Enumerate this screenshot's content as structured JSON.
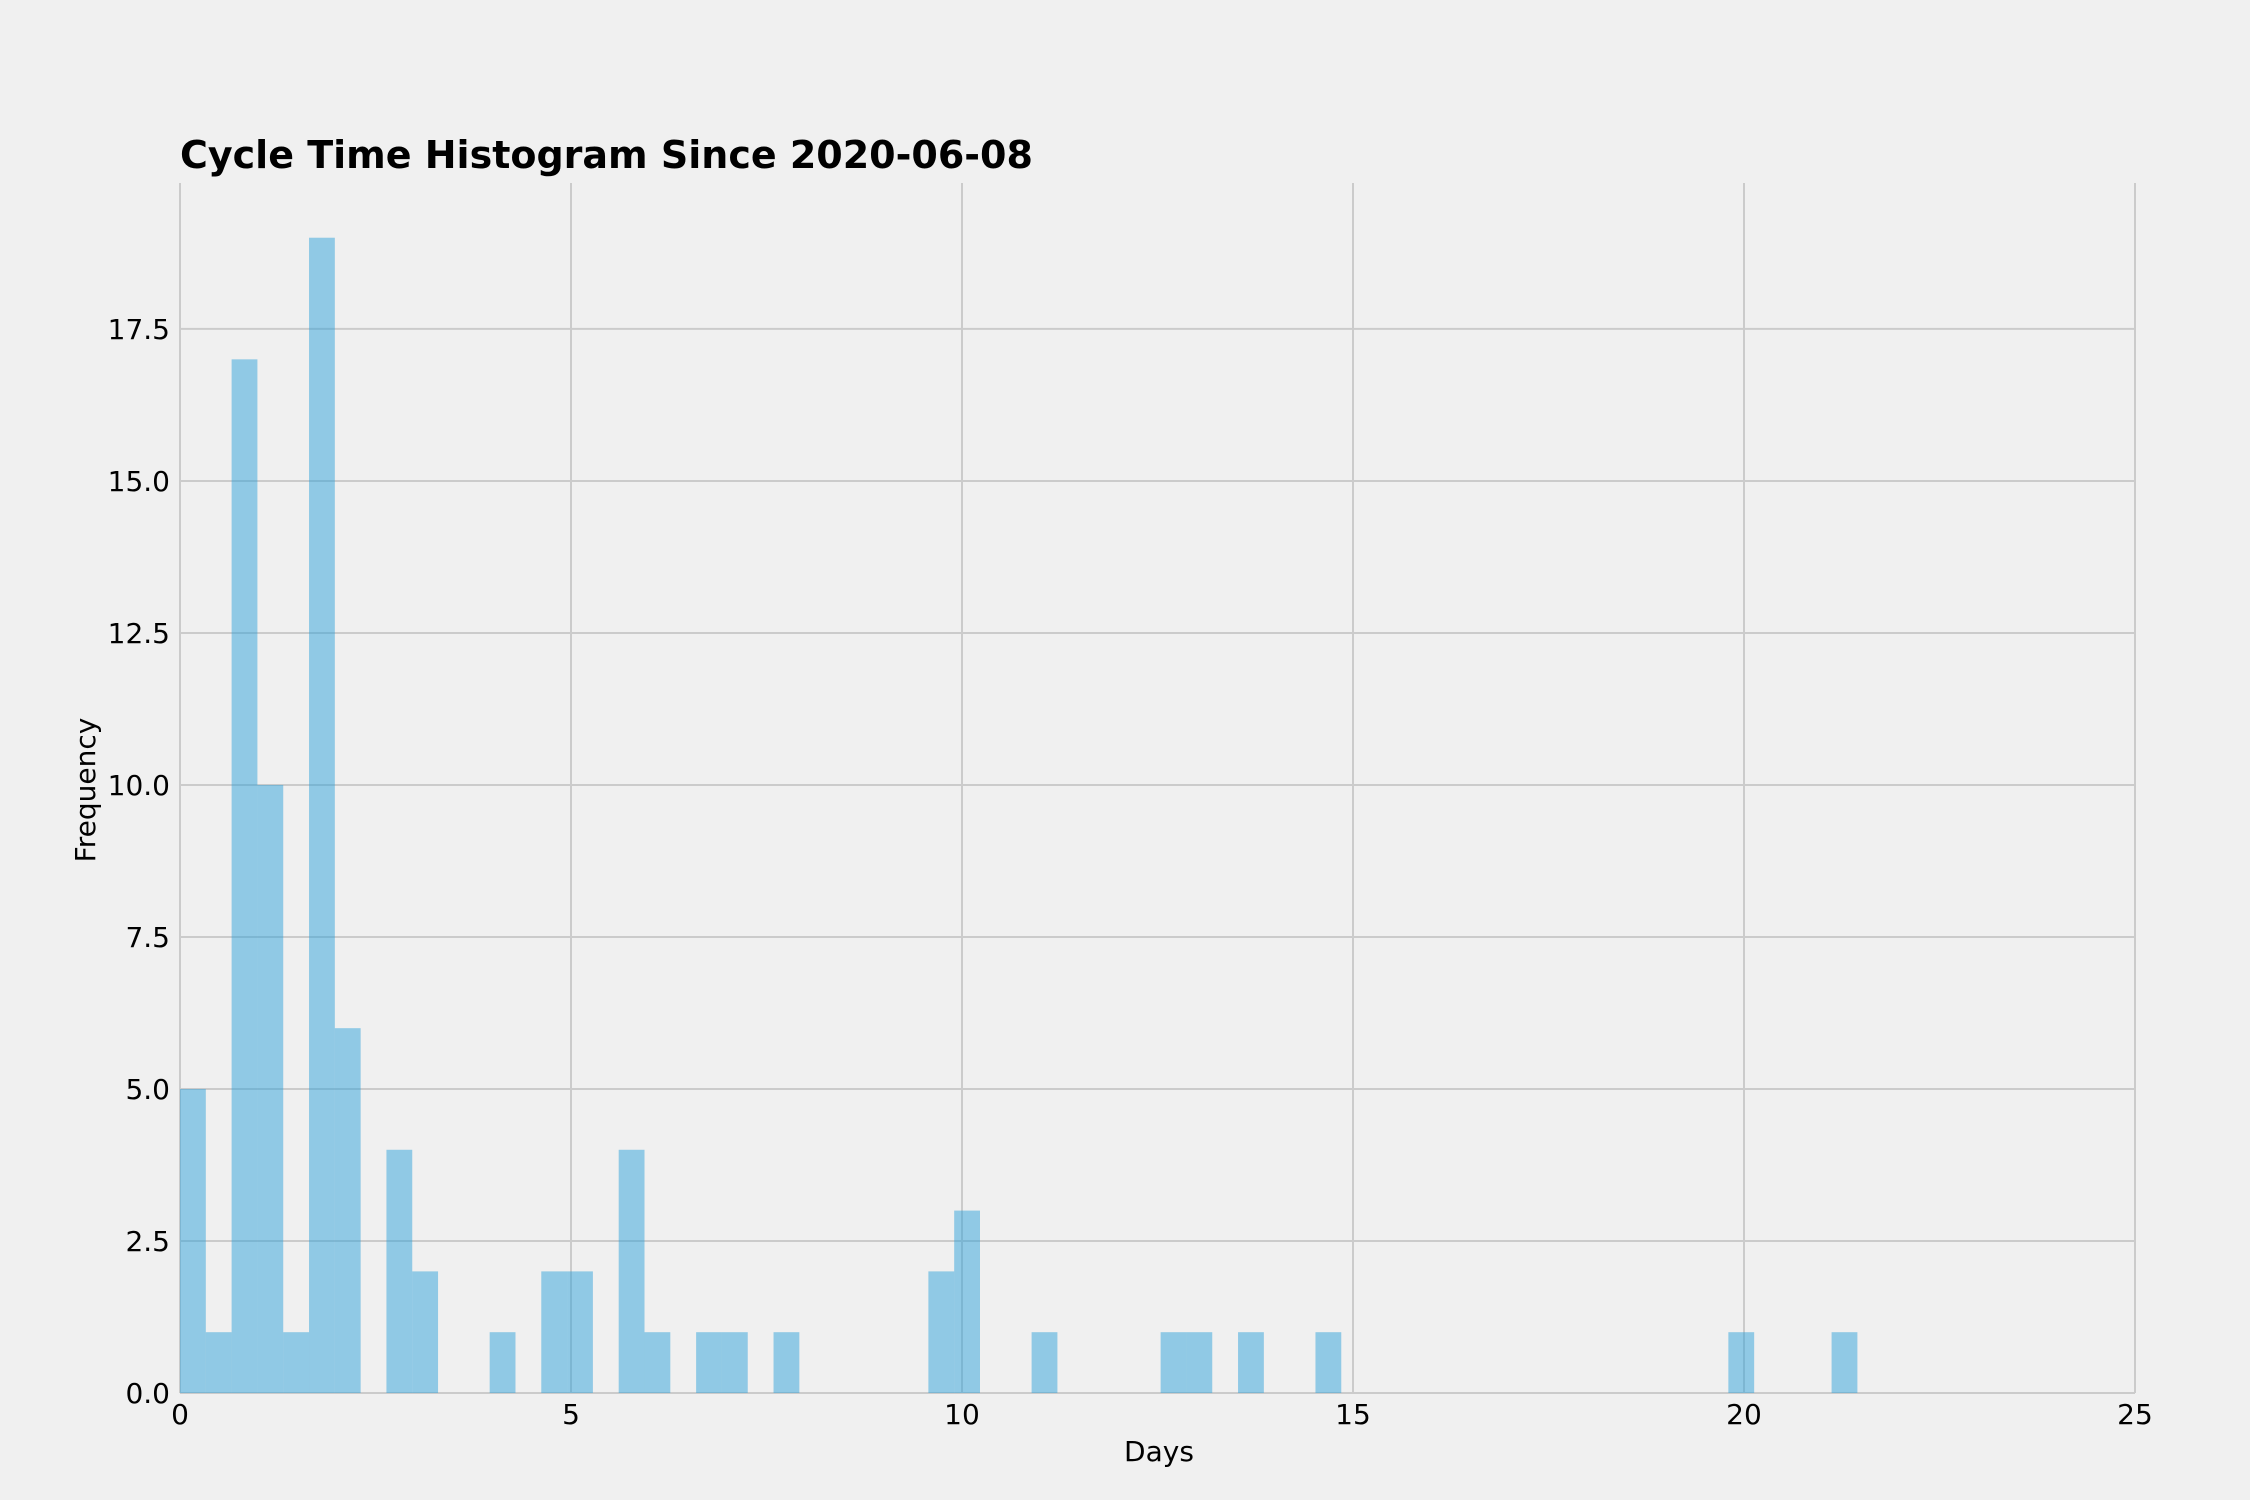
{
  "chart_data": {
    "type": "bar",
    "title": "Cycle Time Histogram Since 2020-06-08",
    "xlabel": "Days",
    "ylabel": "Frequency",
    "xlim": [
      0,
      25
    ],
    "ylim": [
      0,
      19.9
    ],
    "grid": true,
    "bar_color": "#30a2da",
    "background": "#f0f0f0",
    "x_ticks": [
      "0",
      "5",
      "10",
      "15",
      "20",
      "25"
    ],
    "y_ticks": [
      "0.0",
      "2.5",
      "5.0",
      "7.5",
      "10.0",
      "12.5",
      "15.0",
      "17.5"
    ],
    "bins": [
      {
        "start": 0.0,
        "end": 0.33,
        "count": 5
      },
      {
        "start": 0.33,
        "end": 0.66,
        "count": 1
      },
      {
        "start": 0.66,
        "end": 0.99,
        "count": 17
      },
      {
        "start": 0.99,
        "end": 1.32,
        "count": 10
      },
      {
        "start": 1.32,
        "end": 1.65,
        "count": 1
      },
      {
        "start": 1.65,
        "end": 1.98,
        "count": 19
      },
      {
        "start": 1.98,
        "end": 2.31,
        "count": 6
      },
      {
        "start": 2.64,
        "end": 2.97,
        "count": 4
      },
      {
        "start": 2.97,
        "end": 3.3,
        "count": 2
      },
      {
        "start": 3.96,
        "end": 4.29,
        "count": 1
      },
      {
        "start": 4.62,
        "end": 4.95,
        "count": 2
      },
      {
        "start": 4.95,
        "end": 5.28,
        "count": 2
      },
      {
        "start": 5.61,
        "end": 5.94,
        "count": 4
      },
      {
        "start": 5.94,
        "end": 6.27,
        "count": 1
      },
      {
        "start": 6.6,
        "end": 6.93,
        "count": 1
      },
      {
        "start": 6.93,
        "end": 7.26,
        "count": 1
      },
      {
        "start": 7.59,
        "end": 7.92,
        "count": 1
      },
      {
        "start": 9.57,
        "end": 9.9,
        "count": 2
      },
      {
        "start": 9.9,
        "end": 10.23,
        "count": 3
      },
      {
        "start": 10.89,
        "end": 11.22,
        "count": 1
      },
      {
        "start": 12.54,
        "end": 12.87,
        "count": 1
      },
      {
        "start": 12.87,
        "end": 13.2,
        "count": 1
      },
      {
        "start": 13.53,
        "end": 13.86,
        "count": 1
      },
      {
        "start": 14.52,
        "end": 14.85,
        "count": 1
      },
      {
        "start": 19.8,
        "end": 20.13,
        "count": 1
      },
      {
        "start": 21.12,
        "end": 21.45,
        "count": 1
      }
    ]
  }
}
